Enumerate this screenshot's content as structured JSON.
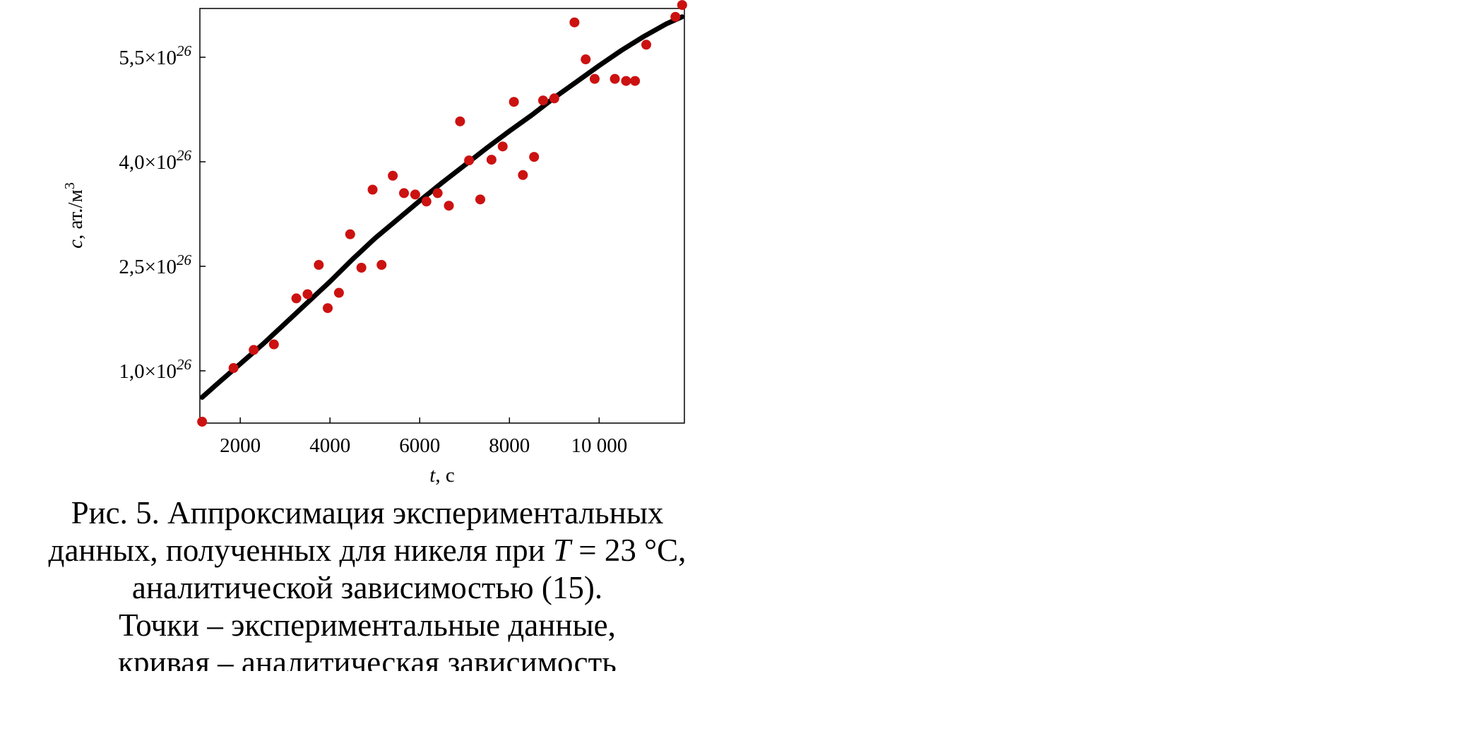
{
  "chart_data": {
    "type": "scatter",
    "xlabel": {
      "var": "t",
      "unit": ", с"
    },
    "ylabel": {
      "var": "c",
      "unit": ", ат./м",
      "unit_sup": "3"
    },
    "xlim": [
      1100,
      11900
    ],
    "ylim": [
      2.5e+25,
      6.2e+26
    ],
    "x_ticks": [
      {
        "value": 2000,
        "label": "2000"
      },
      {
        "value": 4000,
        "label": "4000"
      },
      {
        "value": 6000,
        "label": "6000"
      },
      {
        "value": 8000,
        "label": "8000"
      },
      {
        "value": 10000,
        "label": "10 000"
      }
    ],
    "y_ticks": [
      {
        "value": 1e+26,
        "mantissa": "1,0×10",
        "exp": "26"
      },
      {
        "value": 2.5e+26,
        "mantissa": "2,5×10",
        "exp": "26"
      },
      {
        "value": 4e+26,
        "mantissa": "4,0×10",
        "exp": "26"
      },
      {
        "value": 5.5e+26,
        "mantissa": "5,5×10",
        "exp": "26"
      }
    ],
    "grid": false,
    "series": [
      {
        "kind": "points",
        "color": "#cc1111",
        "points": [
          [
            1150,
            2.7e+25
          ],
          [
            1850,
            1.04e+26
          ],
          [
            2300,
            1.3e+26
          ],
          [
            2750,
            1.38e+26
          ],
          [
            3250,
            2.04e+26
          ],
          [
            3500,
            2.1e+26
          ],
          [
            3750,
            2.52e+26
          ],
          [
            3950,
            1.9e+26
          ],
          [
            4200,
            2.12e+26
          ],
          [
            4450,
            2.96e+26
          ],
          [
            4700,
            2.48e+26
          ],
          [
            4950,
            3.6e+26
          ],
          [
            5150,
            2.52e+26
          ],
          [
            5400,
            3.8e+26
          ],
          [
            5650,
            3.55e+26
          ],
          [
            5900,
            3.53e+26
          ],
          [
            6150,
            3.43e+26
          ],
          [
            6400,
            3.55e+26
          ],
          [
            6650,
            3.37e+26
          ],
          [
            6900,
            4.58e+26
          ],
          [
            7100,
            4.02e+26
          ],
          [
            7350,
            3.46e+26
          ],
          [
            7600,
            4.03e+26
          ],
          [
            7850,
            4.22e+26
          ],
          [
            8100,
            4.86e+26
          ],
          [
            8300,
            3.81e+26
          ],
          [
            8550,
            4.07e+26
          ],
          [
            8750,
            4.88e+26
          ],
          [
            9000,
            4.91e+26
          ],
          [
            9450,
            6e+26
          ],
          [
            9700,
            5.47e+26
          ],
          [
            9900,
            5.19e+26
          ],
          [
            10350,
            5.19e+26
          ],
          [
            10600,
            5.16e+26
          ],
          [
            10800,
            5.16e+26
          ],
          [
            11050,
            5.68e+26
          ],
          [
            11700,
            6.08e+26
          ],
          [
            11850,
            6.25e+26
          ]
        ]
      },
      {
        "kind": "curve",
        "color": "#000000",
        "points": [
          [
            1150,
            6.2e+25
          ],
          [
            1500,
            8.2e+25
          ],
          [
            2000,
            1.1e+26
          ],
          [
            2500,
            1.38e+26
          ],
          [
            3000,
            1.68e+26
          ],
          [
            3500,
            1.98e+26
          ],
          [
            4000,
            2.28e+26
          ],
          [
            4500,
            2.6e+26
          ],
          [
            5000,
            2.9e+26
          ],
          [
            5500,
            3.17e+26
          ],
          [
            6000,
            3.44e+26
          ],
          [
            6500,
            3.7e+26
          ],
          [
            7000,
            3.95e+26
          ],
          [
            7500,
            4.2e+26
          ],
          [
            8000,
            4.44e+26
          ],
          [
            8500,
            4.67e+26
          ],
          [
            9000,
            4.92e+26
          ],
          [
            9500,
            5.15e+26
          ],
          [
            10000,
            5.38e+26
          ],
          [
            10500,
            5.6e+26
          ],
          [
            11000,
            5.8e+26
          ],
          [
            11500,
            5.98e+26
          ],
          [
            11850,
            6.08e+26
          ]
        ]
      }
    ]
  },
  "caption": {
    "lines": [
      {
        "text": "Рис. 5. Аппроксимация экспериментальных"
      },
      {
        "pre": "данных, полученных для никеля при ",
        "var": "T",
        "post": " = 23 °С,"
      },
      {
        "text": "аналитической зависимостью (15)."
      },
      {
        "text": "Точки – экспериментальные данные,"
      },
      {
        "text": "кривая – аналитическая зависимость"
      }
    ]
  }
}
